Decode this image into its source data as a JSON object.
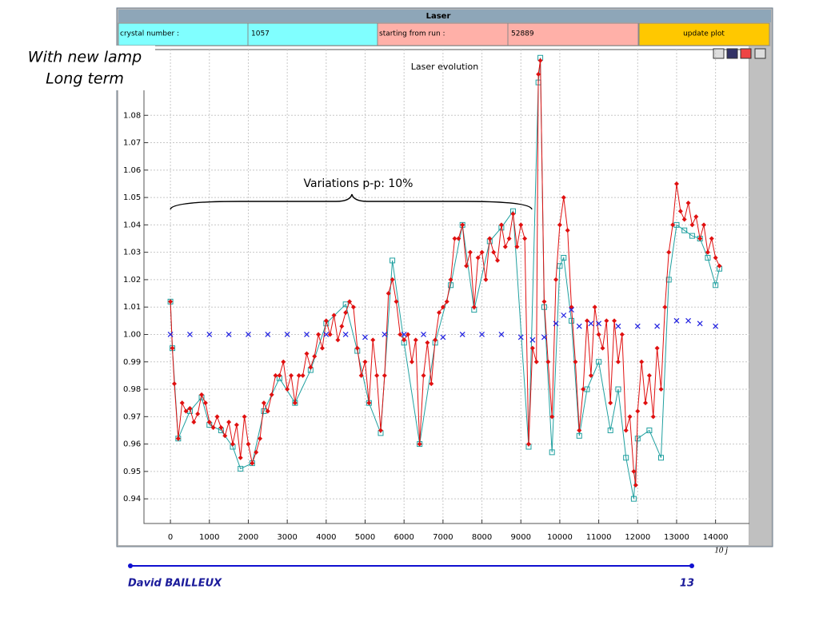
{
  "window": {
    "title": "Laser",
    "crystal_label": "crystal number :",
    "crystal_value": "1057",
    "run_label": "starting from run :",
    "run_value": "52889",
    "button": "update plot"
  },
  "slide": {
    "note": [
      "With new lamp",
      "Long term"
    ],
    "author": "David BAILLEUX",
    "page": "13"
  },
  "chart_data": {
    "type": "line",
    "title": "Laser evolution",
    "x_label": "10 j",
    "annotations": [
      "Variations p-p: 10%"
    ],
    "xlim": [
      -680,
      14870
    ],
    "ylim": [
      0.931,
      1.104
    ],
    "xticks": [
      0,
      1000,
      2000,
      3000,
      4000,
      5000,
      6000,
      7000,
      8000,
      9000,
      10000,
      11000,
      12000,
      13000,
      14000
    ],
    "yticks": [
      0.94,
      0.95,
      0.96,
      0.97,
      0.98,
      0.99,
      {
        "value": 1,
        "label": "1.00"
      },
      1.01,
      1.02,
      1.03,
      1.04,
      1.05,
      1.06,
      1.07,
      1.08
    ],
    "grid": true,
    "series": [
      {
        "name": "cyan",
        "color": "#20a0a0",
        "marker": "square",
        "x": [
          0,
          50,
          200,
          500,
          800,
          1000,
          1300,
          1600,
          1800,
          2100,
          2400,
          2800,
          3200,
          3600,
          4000,
          4500,
          4800,
          5100,
          5400,
          5700,
          6000,
          6400,
          6800,
          7200,
          7500,
          7800,
          8200,
          8500,
          8800,
          9200,
          9450,
          9500,
          9600,
          9800,
          10000,
          10100,
          10300,
          10500,
          10700,
          11000,
          11300,
          11500,
          11700,
          11900,
          12000,
          12300,
          12600,
          12800,
          13000,
          13200,
          13400,
          13600,
          13800,
          14000,
          14100
        ],
        "values": [
          1.012,
          0.995,
          0.962,
          0.972,
          0.977,
          0.967,
          0.965,
          0.959,
          0.951,
          0.953,
          0.972,
          0.984,
          0.975,
          0.987,
          1.004,
          1.011,
          0.994,
          0.975,
          0.964,
          1.027,
          0.997,
          0.96,
          0.997,
          1.018,
          1.04,
          1.009,
          1.034,
          1.039,
          1.045,
          0.959,
          1.092,
          1.101,
          1.01,
          0.957,
          1.025,
          1.028,
          1.005,
          0.963,
          0.98,
          0.99,
          0.965,
          0.98,
          0.955,
          0.94,
          0.962,
          0.965,
          0.955,
          1.02,
          1.04,
          1.038,
          1.036,
          1.035,
          1.028,
          1.018,
          1.024
        ]
      },
      {
        "name": "red",
        "color": "#e01010",
        "marker": "diamond",
        "x": [
          0,
          50,
          100,
          200,
          300,
          400,
          500,
          600,
          700,
          800,
          900,
          1000,
          1100,
          1200,
          1300,
          1400,
          1500,
          1600,
          1700,
          1800,
          1900,
          2000,
          2100,
          2200,
          2300,
          2400,
          2500,
          2600,
          2700,
          2800,
          2900,
          3000,
          3100,
          3200,
          3300,
          3400,
          3500,
          3600,
          3700,
          3800,
          3900,
          4000,
          4100,
          4200,
          4300,
          4400,
          4500,
          4600,
          4700,
          4800,
          4900,
          5000,
          5100,
          5200,
          5300,
          5400,
          5500,
          5600,
          5700,
          5800,
          5900,
          6000,
          6100,
          6200,
          6300,
          6400,
          6500,
          6600,
          6700,
          6800,
          6900,
          7000,
          7100,
          7200,
          7300,
          7400,
          7500,
          7600,
          7700,
          7800,
          7900,
          8000,
          8100,
          8200,
          8300,
          8400,
          8500,
          8600,
          8700,
          8800,
          8900,
          9000,
          9100,
          9200,
          9300,
          9400,
          9450,
          9500,
          9600,
          9700,
          9800,
          9900,
          10000,
          10100,
          10200,
          10300,
          10400,
          10500,
          10600,
          10700,
          10800,
          10900,
          11000,
          11100,
          11200,
          11300,
          11400,
          11500,
          11600,
          11700,
          11800,
          11900,
          11950,
          12000,
          12100,
          12200,
          12300,
          12400,
          12500,
          12600,
          12700,
          12800,
          12900,
          13000,
          13100,
          13200,
          13300,
          13400,
          13500,
          13600,
          13700,
          13800,
          13900,
          14000,
          14100
        ],
        "values": [
          1.012,
          0.995,
          0.982,
          0.962,
          0.975,
          0.972,
          0.973,
          0.968,
          0.971,
          0.978,
          0.975,
          0.968,
          0.966,
          0.97,
          0.966,
          0.963,
          0.968,
          0.96,
          0.967,
          0.955,
          0.97,
          0.96,
          0.953,
          0.957,
          0.962,
          0.975,
          0.972,
          0.978,
          0.985,
          0.985,
          0.99,
          0.98,
          0.985,
          0.975,
          0.985,
          0.985,
          0.993,
          0.988,
          0.992,
          1,
          0.995,
          1.005,
          1,
          1.007,
          0.998,
          1.003,
          1.008,
          1.012,
          1.01,
          0.995,
          0.985,
          0.99,
          0.975,
          0.998,
          0.985,
          0.965,
          0.985,
          1.015,
          1.02,
          1.012,
          1,
          0.998,
          1,
          0.99,
          0.998,
          0.96,
          0.985,
          0.997,
          0.982,
          0.998,
          1.008,
          1.01,
          1.012,
          1.02,
          1.035,
          1.035,
          1.04,
          1.025,
          1.03,
          1.01,
          1.028,
          1.03,
          1.02,
          1.035,
          1.03,
          1.027,
          1.04,
          1.032,
          1.035,
          1.044,
          1.032,
          1.04,
          1.035,
          0.96,
          0.995,
          0.99,
          1.095,
          1.1,
          1.012,
          0.99,
          0.97,
          1.02,
          1.04,
          1.05,
          1.038,
          1.01,
          0.99,
          0.965,
          0.98,
          1.005,
          0.985,
          1.01,
          1,
          0.995,
          1.005,
          0.975,
          1.005,
          0.99,
          1,
          0.965,
          0.97,
          0.95,
          0.945,
          0.972,
          0.99,
          0.975,
          0.985,
          0.97,
          0.995,
          0.98,
          1.01,
          1.03,
          1.04,
          1.055,
          1.045,
          1.042,
          1.048,
          1.04,
          1.043,
          1.035,
          1.04,
          1.03,
          1.035,
          1.028,
          1.025
        ]
      },
      {
        "name": "blue",
        "color": "#2020e0",
        "marker": "cross",
        "x": [
          0,
          500,
          1000,
          1500,
          2000,
          2500,
          3000,
          3500,
          4000,
          4500,
          5000,
          5500,
          6000,
          6500,
          7000,
          7500,
          8000,
          8500,
          9000,
          9300,
          9600,
          9900,
          10100,
          10300,
          10500,
          10800,
          11000,
          11500,
          12000,
          12500,
          13000,
          13300,
          13600,
          14000
        ],
        "values": [
          1,
          1,
          1,
          1,
          1,
          1,
          1,
          1,
          1,
          1,
          0.999,
          1,
          1,
          1,
          0.999,
          1,
          1,
          1,
          0.999,
          0.998,
          0.999,
          1.004,
          1.007,
          1.009,
          1.003,
          1.004,
          1.004,
          1.003,
          1.003,
          1.003,
          1.005,
          1.005,
          1.004,
          1.003
        ]
      }
    ]
  }
}
